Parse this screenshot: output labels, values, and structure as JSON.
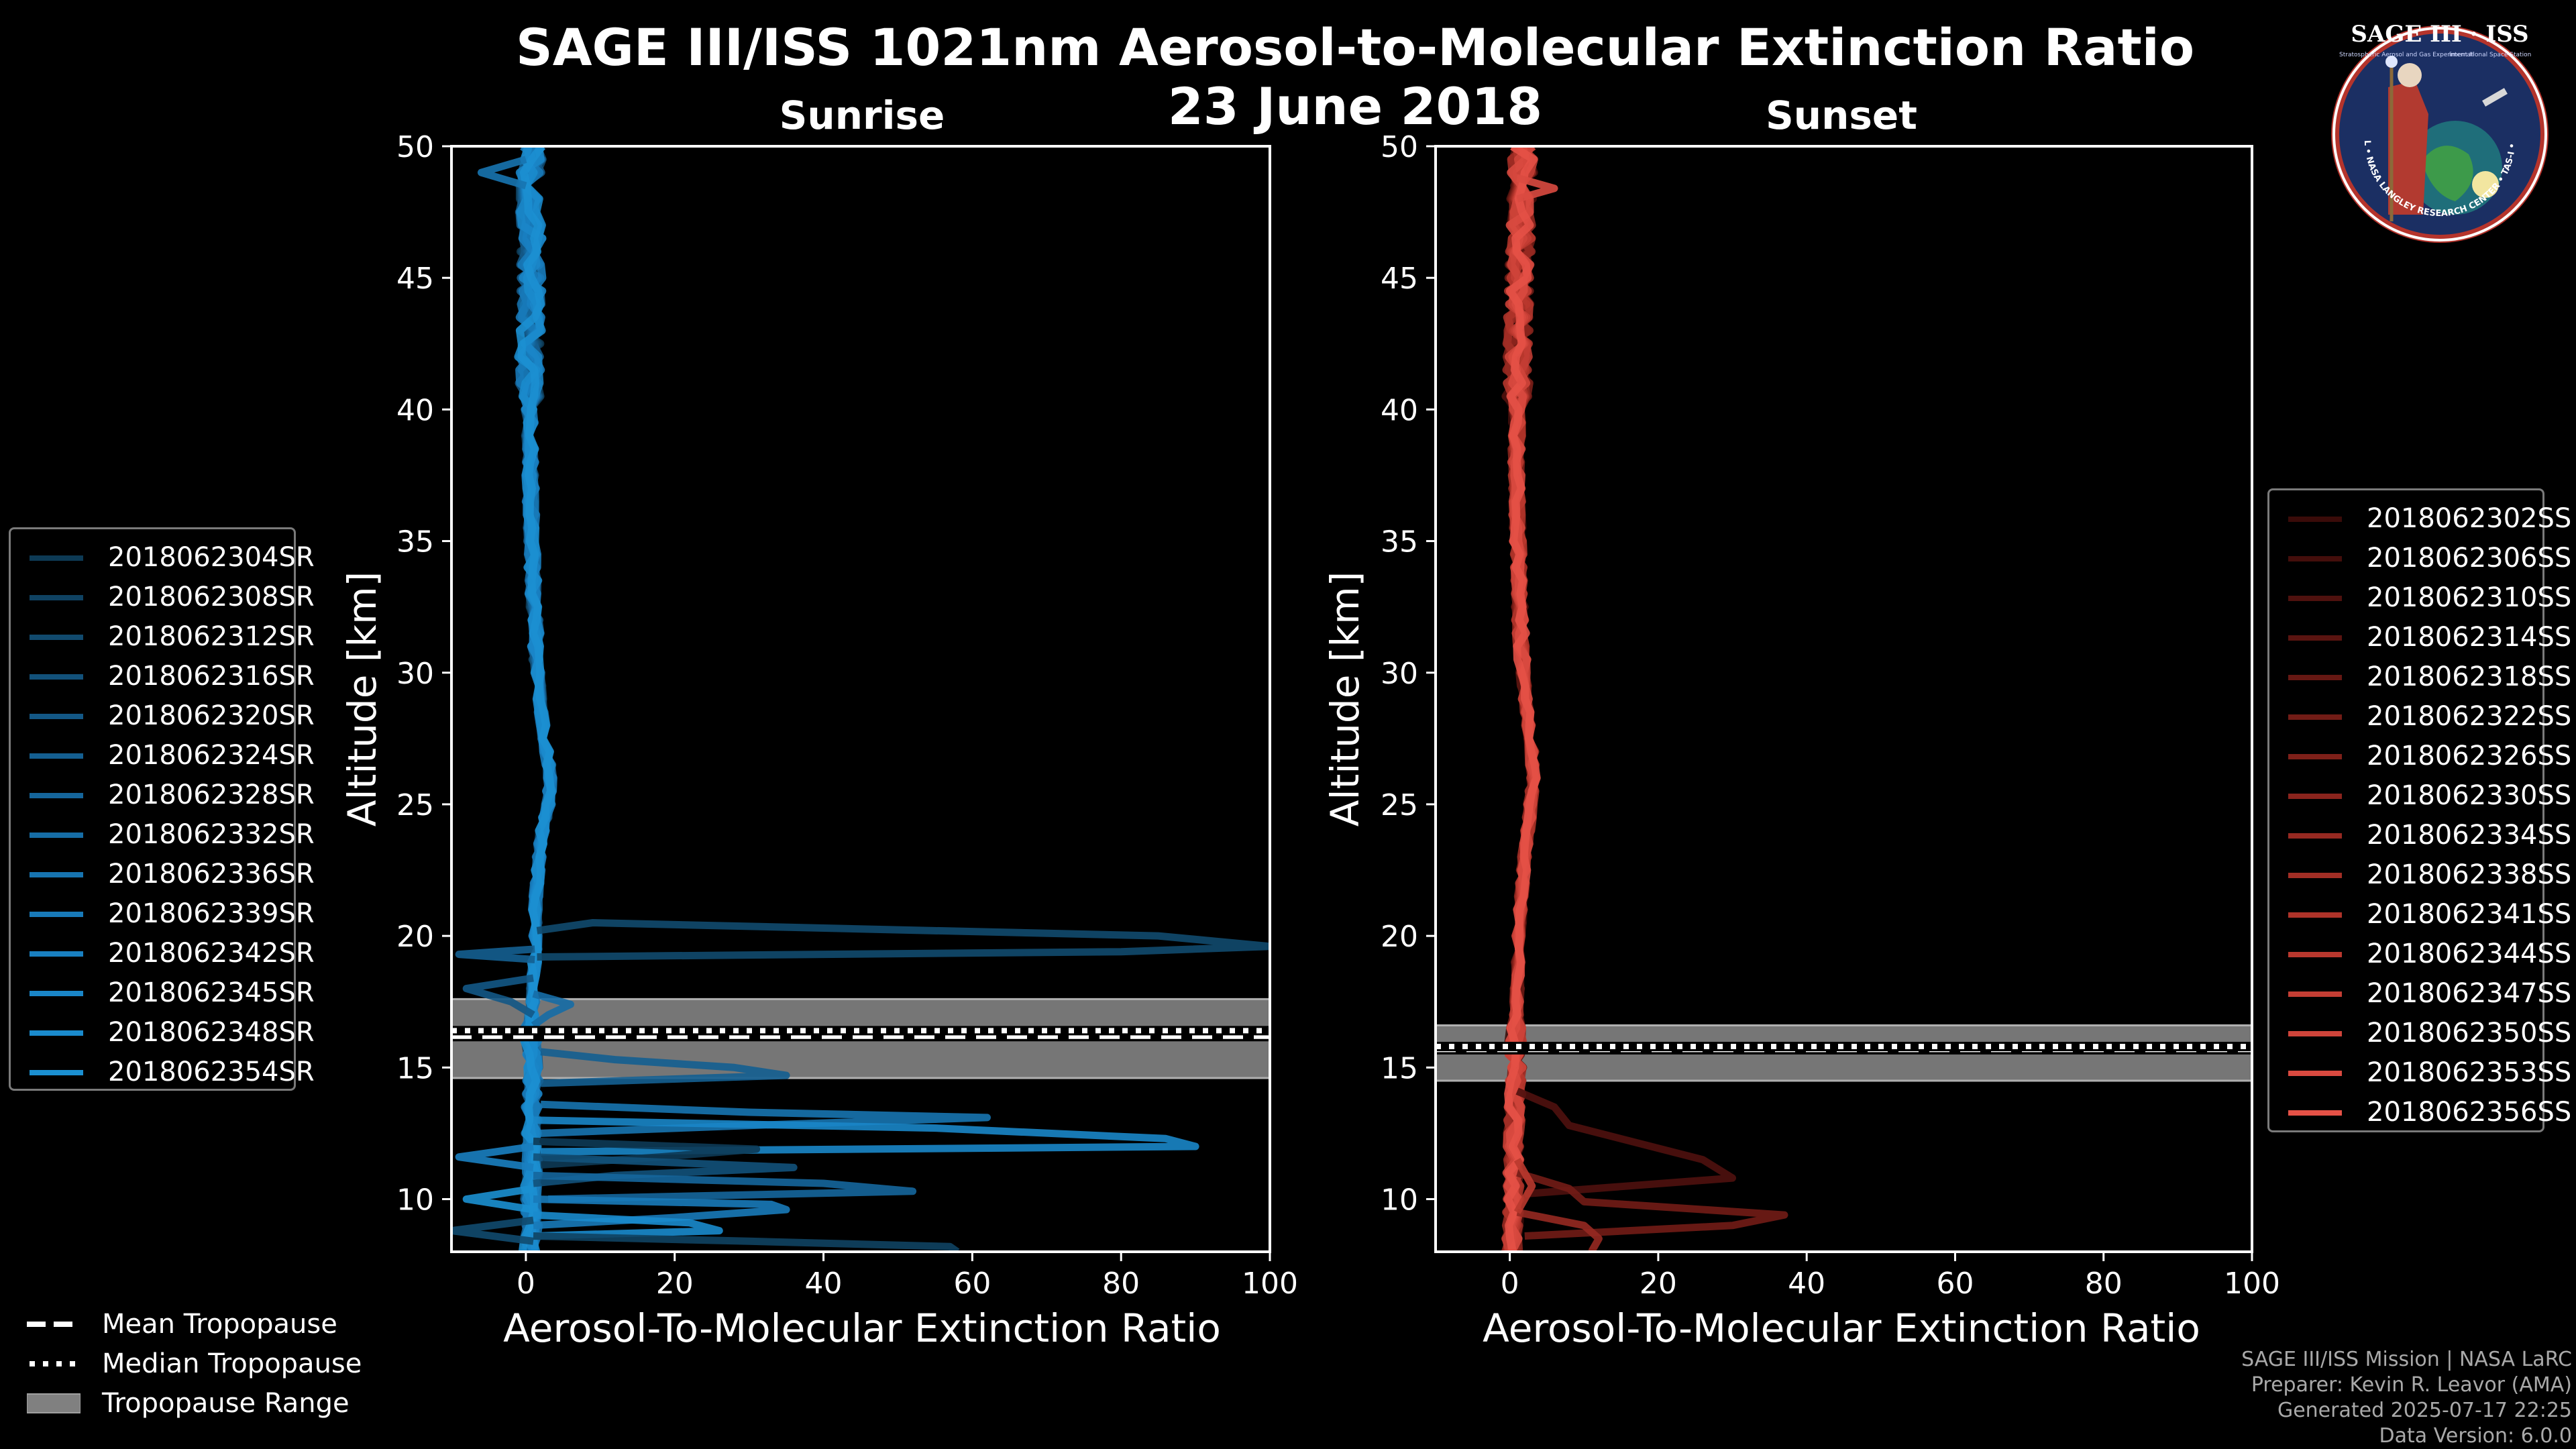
{
  "figure": {
    "title_line1": "SAGE III/ISS 1021nm Aerosol-to-Molecular Extinction Ratio",
    "title_line2": "23 June 2018",
    "logo": {
      "main_text": "SAGE III · ISS",
      "ring_text": "BALL • NASA LANGLEY RESEARCH CENTER • TAS-I • ESA",
      "small_left": "Stratospheric Aerosol and Gas Experiment III",
      "small_right": "International Space Station"
    },
    "credits": [
      "SAGE III/ISS Mission | NASA LaRC",
      "Preparer: Kevin R. Leavor (AMA)",
      "Generated 2025-07-17 22:25",
      "Data Version: 6.0.0"
    ],
    "tropopause_legend": [
      {
        "label": "Mean Tropopause",
        "style": "dashed"
      },
      {
        "label": "Median Tropopause",
        "style": "dotted"
      },
      {
        "label": "Tropopause Range",
        "style": "patch"
      }
    ],
    "colors": {
      "background": "#000000",
      "sunrise": "#1a8fd0",
      "sunset": "#e8574a",
      "tropopause_band": "#808080"
    }
  },
  "chart_data": [
    {
      "type": "line",
      "title": "Sunrise",
      "xlabel": "Aerosol-To-Molecular Extinction Ratio",
      "ylabel": "Altitude [km]",
      "xlim": [
        -10,
        100
      ],
      "ylim": [
        8,
        50
      ],
      "xticks": [
        0,
        20,
        40,
        60,
        80,
        100
      ],
      "yticks": [
        10,
        15,
        20,
        25,
        30,
        35,
        40,
        45,
        50
      ],
      "grid": false,
      "legend_position": "left",
      "tropopause": {
        "mean": 16.2,
        "median": 16.4,
        "min": 14.6,
        "max": 17.6
      },
      "series": [
        {
          "name": "2018062304SR",
          "color": "#0d3a55"
        },
        {
          "name": "2018062308SR",
          "color": "#0f4262"
        },
        {
          "name": "2018062312SR",
          "color": "#114a6e"
        },
        {
          "name": "2018062316SR",
          "color": "#12517a"
        },
        {
          "name": "2018062320SR",
          "color": "#135886"
        },
        {
          "name": "2018062324SR",
          "color": "#145f91"
        },
        {
          "name": "2018062328SR",
          "color": "#15669c"
        },
        {
          "name": "2018062332SR",
          "color": "#166da6"
        },
        {
          "name": "2018062336SR",
          "color": "#1774b0"
        },
        {
          "name": "2018062339SR",
          "color": "#187ab9"
        },
        {
          "name": "2018062342SR",
          "color": "#1980c1"
        },
        {
          "name": "2018062345SR",
          "color": "#1a86c8"
        },
        {
          "name": "2018062348SR",
          "color": "#1a8bcd"
        },
        {
          "name": "2018062354SR",
          "color": "#1b90d2"
        }
      ],
      "representative_profile": {
        "altitude": [
          8,
          9,
          10,
          11,
          12,
          13,
          14,
          15,
          16,
          17,
          18,
          19,
          20,
          21,
          22,
          23,
          24,
          25,
          26,
          27,
          28,
          29,
          30,
          32,
          34,
          36,
          38,
          40,
          42,
          44,
          46,
          48,
          50
        ],
        "ratio": [
          0.5,
          0.8,
          0.6,
          0.9,
          0.7,
          0.8,
          0.9,
          0.8,
          0.7,
          0.8,
          1.0,
          1.2,
          1.2,
          1.3,
          1.5,
          1.8,
          2.2,
          3.0,
          3.3,
          2.8,
          2.3,
          1.9,
          1.6,
          1.2,
          0.9,
          0.7,
          0.6,
          0.5,
          0.5,
          0.6,
          0.7,
          0.6,
          0.8
        ]
      },
      "spikes": [
        {
          "altitude": [
            20.2,
            20.5,
            20.0,
            19.6,
            19.4,
            19.2
          ],
          "ratio": [
            1.5,
            9,
            85,
            100,
            80,
            1.5
          ]
        },
        {
          "altitude": [
            15.6,
            15.3,
            15.0,
            14.7,
            14.4
          ],
          "ratio": [
            2,
            12,
            28,
            35,
            2
          ]
        },
        {
          "altitude": [
            13.6,
            13.3,
            13.1,
            12.8,
            12.5
          ],
          "ratio": [
            2,
            30,
            62,
            30,
            2
          ]
        },
        {
          "altitude": [
            13.0,
            12.7,
            12.3,
            12.0,
            11.8
          ],
          "ratio": [
            1,
            55,
            86,
            90,
            2
          ]
        },
        {
          "altitude": [
            12.2,
            11.9,
            11.6,
            11.3
          ],
          "ratio": [
            1,
            31,
            18,
            2
          ]
        },
        {
          "altitude": [
            11.6,
            11.2,
            10.9,
            10.6
          ],
          "ratio": [
            1,
            36,
            12,
            1
          ]
        },
        {
          "altitude": [
            10.9,
            10.6,
            10.3,
            10.0
          ],
          "ratio": [
            1,
            40,
            52,
            3
          ]
        },
        {
          "altitude": [
            10.0,
            9.8,
            9.6,
            9.3,
            9.0
          ],
          "ratio": [
            1,
            33,
            35,
            20,
            1
          ]
        },
        {
          "altitude": [
            9.4,
            9.1,
            8.8,
            8.6
          ],
          "ratio": [
            1,
            22,
            26,
            1
          ]
        },
        {
          "altitude": [
            8.6,
            8.4,
            8.2,
            8.0
          ],
          "ratio": [
            1,
            30,
            57,
            58
          ]
        },
        {
          "altitude": [
            18.4,
            18.0,
            17.5,
            17.0
          ],
          "ratio": [
            1,
            -8,
            -2,
            1
          ]
        },
        {
          "altitude": [
            17.8,
            17.4,
            17.0,
            16.6
          ],
          "ratio": [
            1,
            6,
            3,
            1
          ]
        },
        {
          "altitude": [
            12.0,
            11.6,
            11.2
          ],
          "ratio": [
            1,
            -9,
            1
          ]
        },
        {
          "altitude": [
            10.4,
            10.0,
            9.6
          ],
          "ratio": [
            1,
            -8,
            1
          ]
        },
        {
          "altitude": [
            9.2,
            8.8,
            8.4
          ],
          "ratio": [
            1,
            -10,
            1
          ]
        },
        {
          "altitude": [
            19.5,
            19.3,
            19.1
          ],
          "ratio": [
            1.2,
            -9,
            1.2
          ]
        },
        {
          "altitude": [
            49.5,
            49.0,
            48.5
          ],
          "ratio": [
            0,
            -6,
            0
          ]
        }
      ]
    },
    {
      "type": "line",
      "title": "Sunset",
      "xlabel": "Aerosol-To-Molecular Extinction Ratio",
      "ylabel": "Altitude [km]",
      "xlim": [
        -10,
        100
      ],
      "ylim": [
        8,
        50
      ],
      "xticks": [
        0,
        20,
        40,
        60,
        80,
        100
      ],
      "yticks": [
        10,
        15,
        20,
        25,
        30,
        35,
        40,
        45,
        50
      ],
      "grid": false,
      "legend_position": "right",
      "tropopause": {
        "mean": 15.7,
        "median": 15.8,
        "min": 14.5,
        "max": 16.6
      },
      "series": [
        {
          "name": "2018062302SS",
          "color": "#3a0b09"
        },
        {
          "name": "2018062306SS",
          "color": "#440e0b"
        },
        {
          "name": "2018062310SS",
          "color": "#4f110e"
        },
        {
          "name": "2018062314SS",
          "color": "#5a1410"
        },
        {
          "name": "2018062318SS",
          "color": "#661813"
        },
        {
          "name": "2018062322SS",
          "color": "#721c16"
        },
        {
          "name": "2018062326SS",
          "color": "#7e2019"
        },
        {
          "name": "2018062330SS",
          "color": "#8a241d"
        },
        {
          "name": "2018062334SS",
          "color": "#962921"
        },
        {
          "name": "2018062338SS",
          "color": "#a22e25"
        },
        {
          "name": "2018062341SS",
          "color": "#ae3329"
        },
        {
          "name": "2018062344SS",
          "color": "#b9382e"
        },
        {
          "name": "2018062347SS",
          "color": "#c43e34"
        },
        {
          "name": "2018062350SS",
          "color": "#cf443a"
        },
        {
          "name": "2018062353SS",
          "color": "#da4a40"
        },
        {
          "name": "2018062356SS",
          "color": "#e55147"
        }
      ],
      "representative_profile": {
        "altitude": [
          8,
          9,
          10,
          11,
          12,
          13,
          14,
          15,
          16,
          17,
          18,
          19,
          20,
          21,
          22,
          23,
          24,
          25,
          26,
          27,
          28,
          29,
          30,
          32,
          34,
          36,
          38,
          40,
          42,
          44,
          46,
          48,
          50
        ],
        "ratio": [
          0.3,
          0.4,
          0.5,
          0.5,
          0.5,
          0.6,
          0.7,
          0.8,
          0.8,
          0.9,
          1.0,
          1.1,
          1.2,
          1.4,
          1.7,
          2.0,
          2.4,
          2.8,
          3.2,
          3.0,
          2.5,
          2.1,
          1.8,
          1.4,
          1.2,
          1.0,
          0.9,
          1.0,
          1.1,
          1.2,
          1.4,
          1.6,
          1.8
        ]
      },
      "spikes": [
        {
          "altitude": [
            14.1,
            13.5,
            12.8,
            11.5,
            10.8,
            10.2
          ],
          "ratio": [
            1,
            6,
            8,
            26,
            30,
            2
          ]
        },
        {
          "altitude": [
            11.0,
            10.4,
            9.9,
            9.4,
            9.0,
            8.6
          ],
          "ratio": [
            1,
            8,
            10,
            37,
            30,
            2
          ]
        },
        {
          "altitude": [
            9.5,
            9.0,
            8.5,
            8.0
          ],
          "ratio": [
            1,
            10,
            12,
            11
          ]
        },
        {
          "altitude": [
            11.5,
            10.5,
            9.5
          ],
          "ratio": [
            1,
            3,
            1
          ]
        },
        {
          "altitude": [
            48.8,
            48.4,
            48.0
          ],
          "ratio": [
            1,
            6,
            1
          ]
        }
      ]
    }
  ]
}
